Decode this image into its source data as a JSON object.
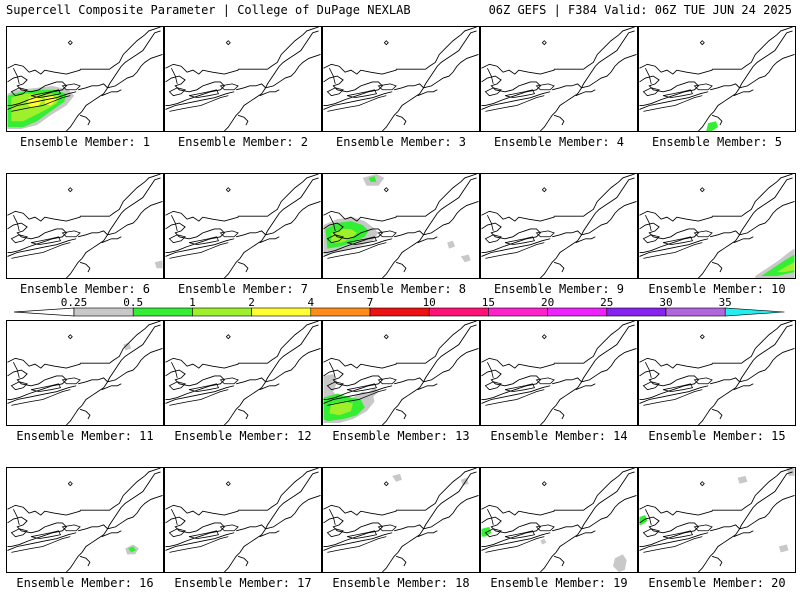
{
  "header": {
    "left_title": "Supercell Composite Parameter | College of DuPage NEXLAB",
    "right_title": "06Z GEFS | F384 Valid: 06Z TUE JUN 24 2025"
  },
  "colorbar": {
    "ticks": [
      "0.25",
      "0.5",
      "1",
      "2",
      "4",
      "7",
      "10",
      "15",
      "20",
      "25",
      "30",
      "35"
    ],
    "colors": [
      "#c8c8c8",
      "#33ee33",
      "#9df02a",
      "#ffff33",
      "#ff8c1a",
      "#ee1111",
      "#ff1177",
      "#ff22cc",
      "#ee22ff",
      "#8822ee",
      "#b266dd",
      "#22eeee"
    ]
  },
  "members": [
    {
      "label": "Ensemble Member: 1"
    },
    {
      "label": "Ensemble Member: 2"
    },
    {
      "label": "Ensemble Member: 3"
    },
    {
      "label": "Ensemble Member: 4"
    },
    {
      "label": "Ensemble Member: 5"
    },
    {
      "label": "Ensemble Member: 6"
    },
    {
      "label": "Ensemble Member: 7"
    },
    {
      "label": "Ensemble Member: 8"
    },
    {
      "label": "Ensemble Member: 9"
    },
    {
      "label": "Ensemble Member: 10"
    },
    {
      "label": "Ensemble Member: 11"
    },
    {
      "label": "Ensemble Member: 12"
    },
    {
      "label": "Ensemble Member: 13"
    },
    {
      "label": "Ensemble Member: 14"
    },
    {
      "label": "Ensemble Member: 15"
    },
    {
      "label": "Ensemble Member: 16"
    },
    {
      "label": "Ensemble Member: 17"
    },
    {
      "label": "Ensemble Member: 18"
    },
    {
      "label": "Ensemble Member: 19"
    },
    {
      "label": "Ensemble Member: 20"
    }
  ]
}
